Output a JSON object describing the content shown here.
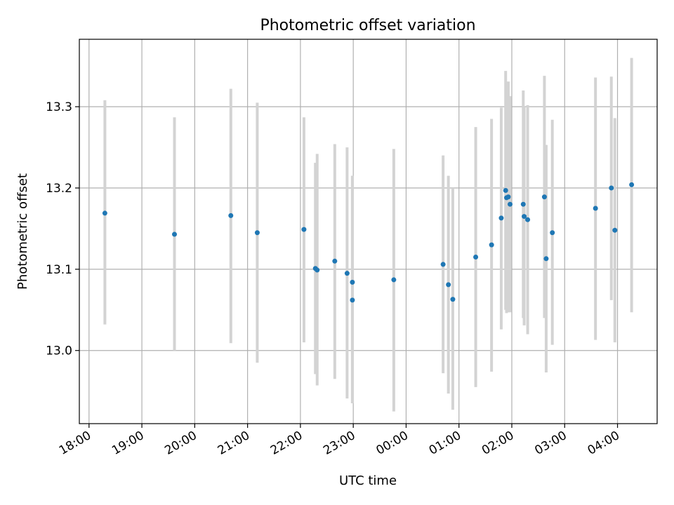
{
  "chart_data": {
    "type": "scatter",
    "title": "Photometric offset variation",
    "xlabel": "UTC time",
    "ylabel": "Photometric offset",
    "x_ticks": [
      "18:00",
      "19:00",
      "20:00",
      "21:00",
      "22:00",
      "23:00",
      "00:00",
      "01:00",
      "02:00",
      "03:00",
      "04:00"
    ],
    "y_ticks": [
      "13.0",
      "13.1",
      "13.2",
      "13.3"
    ],
    "xlim": [
      "17:49",
      "04:45"
    ],
    "ylim": [
      12.91,
      13.383
    ],
    "grid": true,
    "colors": {
      "point": "#1f77b4",
      "errorbar": "#d3d3d3",
      "grid": "#b0b0b0"
    },
    "points": [
      {
        "x": "18:18",
        "y": 13.169,
        "lo": 13.032,
        "hi": 13.308
      },
      {
        "x": "19:37",
        "y": 13.143,
        "lo": 13.0,
        "hi": 13.287
      },
      {
        "x": "20:41",
        "y": 13.166,
        "lo": 13.009,
        "hi": 13.322
      },
      {
        "x": "21:11",
        "y": 13.145,
        "lo": 12.985,
        "hi": 13.305
      },
      {
        "x": "22:04",
        "y": 13.149,
        "lo": 13.01,
        "hi": 13.287
      },
      {
        "x": "22:17",
        "y": 13.101,
        "lo": 12.971,
        "hi": 13.231
      },
      {
        "x": "22:19",
        "y": 13.099,
        "lo": 12.957,
        "hi": 13.242
      },
      {
        "x": "22:39",
        "y": 13.11,
        "lo": 12.965,
        "hi": 13.254
      },
      {
        "x": "22:53",
        "y": 13.095,
        "lo": 12.941,
        "hi": 13.25
      },
      {
        "x": "22:59",
        "y": 13.084,
        "lo": 12.935,
        "hi": 13.215
      },
      {
        "x": "22:59",
        "y": 13.062,
        "lo": 12.935,
        "hi": 13.215
      },
      {
        "x": "23:46",
        "y": 13.087,
        "lo": 12.925,
        "hi": 13.248
      },
      {
        "x": "00:42",
        "y": 13.106,
        "lo": 12.972,
        "hi": 13.24
      },
      {
        "x": "00:48",
        "y": 13.081,
        "lo": 12.947,
        "hi": 13.215
      },
      {
        "x": "00:53",
        "y": 13.063,
        "lo": 12.927,
        "hi": 13.2
      },
      {
        "x": "01:19",
        "y": 13.115,
        "lo": 12.955,
        "hi": 13.275
      },
      {
        "x": "01:37",
        "y": 13.13,
        "lo": 12.974,
        "hi": 13.285
      },
      {
        "x": "01:48",
        "y": 13.163,
        "lo": 13.026,
        "hi": 13.299
      },
      {
        "x": "01:53",
        "y": 13.197,
        "lo": 13.05,
        "hi": 13.344
      },
      {
        "x": "01:54",
        "y": 13.188,
        "lo": 13.046,
        "hi": 13.33
      },
      {
        "x": "01:56",
        "y": 13.189,
        "lo": 13.047,
        "hi": 13.331
      },
      {
        "x": "01:58",
        "y": 13.18,
        "lo": 13.047,
        "hi": 13.313
      },
      {
        "x": "02:13",
        "y": 13.18,
        "lo": 13.04,
        "hi": 13.32
      },
      {
        "x": "02:14",
        "y": 13.165,
        "lo": 13.031,
        "hi": 13.3
      },
      {
        "x": "02:18",
        "y": 13.161,
        "lo": 13.02,
        "hi": 13.302
      },
      {
        "x": "02:37",
        "y": 13.189,
        "lo": 13.04,
        "hi": 13.338
      },
      {
        "x": "02:39",
        "y": 13.113,
        "lo": 12.973,
        "hi": 13.253
      },
      {
        "x": "02:46",
        "y": 13.145,
        "lo": 13.007,
        "hi": 13.284
      },
      {
        "x": "03:35",
        "y": 13.175,
        "lo": 13.013,
        "hi": 13.336
      },
      {
        "x": "03:53",
        "y": 13.2,
        "lo": 13.062,
        "hi": 13.337
      },
      {
        "x": "03:57",
        "y": 13.148,
        "lo": 13.01,
        "hi": 13.286
      },
      {
        "x": "04:16",
        "y": 13.204,
        "lo": 13.047,
        "hi": 13.36
      }
    ]
  }
}
